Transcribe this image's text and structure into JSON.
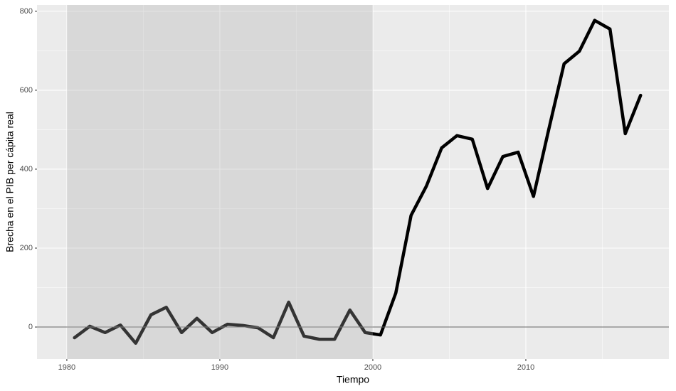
{
  "chart_data": {
    "type": "line",
    "x_label": "Tiempo",
    "y_label": "Brecha en el PIB per cápita real",
    "x": [
      1980.5,
      1981.5,
      1982.5,
      1983.5,
      1984.5,
      1985.5,
      1986.5,
      1987.5,
      1988.5,
      1989.5,
      1990.5,
      1991.5,
      1992.5,
      1993.5,
      1994.5,
      1995.5,
      1996.5,
      1997.5,
      1998.5,
      1999.5,
      2000.5,
      2001.5,
      2002.5,
      2003.5,
      2004.5,
      2005.5,
      2006.5,
      2007.5,
      2008.5,
      2009.5,
      2010.5,
      2011.5,
      2012.5,
      2013.5,
      2014.5,
      2015.5,
      2016.5,
      2017.5
    ],
    "series": [
      {
        "color": "#000000",
        "values": [
          -27,
          2,
          -14,
          5,
          -41,
          31,
          50,
          -14,
          22,
          -14,
          7,
          4,
          -2,
          -27,
          63,
          -23,
          -31,
          -31,
          43,
          -14,
          -20,
          86,
          283,
          357,
          454,
          485,
          476,
          351,
          432,
          443,
          331,
          501,
          667,
          699,
          777,
          755,
          490,
          587
        ]
      }
    ],
    "xlim": [
      1978.05,
      2019.35
    ],
    "ylim": [
      -81,
      816
    ],
    "xticks": [
      1980,
      1990,
      2000,
      2010
    ],
    "yticks": [
      0,
      200,
      400,
      600,
      800
    ],
    "minor_xticks": [
      1985,
      1995,
      2005,
      2015
    ],
    "minor_yticks": [
      100,
      300,
      500,
      700
    ],
    "grid": true,
    "shade_x": [
      1980,
      2000
    ],
    "shade_color": "#adadad",
    "hline": 0,
    "hline_color": "#666666"
  }
}
